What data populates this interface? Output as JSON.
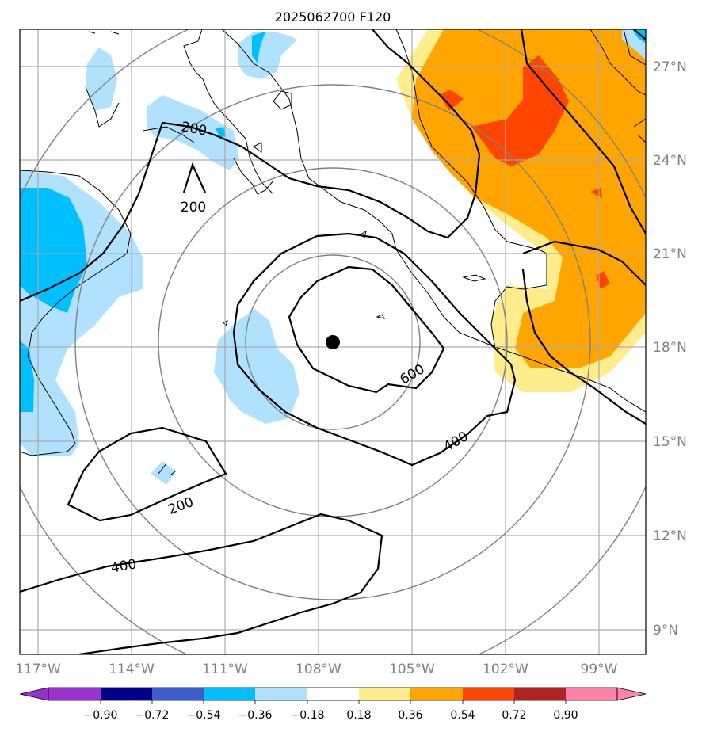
{
  "title": "2025062700 F120",
  "map": {
    "lat_labels": [
      "27°N",
      "24°N",
      "21°N",
      "18°N",
      "15°N",
      "12°N",
      "9°N"
    ],
    "lon_labels": [
      "117°W",
      "114°W",
      "111°W",
      "108°W",
      "105°W",
      "102°W",
      "99°W"
    ],
    "contour_labels": [
      "200",
      "200",
      "200",
      "400",
      "400",
      "600"
    ],
    "storm_center": "filled-black-circle"
  },
  "colorbar": {
    "ticks": [
      "−0.90",
      "−0.72",
      "−0.54",
      "−0.36",
      "−0.18",
      "0.18",
      "0.36",
      "0.54",
      "0.72",
      "0.90"
    ],
    "colors": [
      "#9932cc",
      "#00008b",
      "#3a5fcd",
      "#00bfff",
      "#b0e2ff",
      "#ffffff",
      "#ffec8b",
      "#ffa500",
      "#ff4500",
      "#b22222",
      "#ff82ab"
    ]
  }
}
